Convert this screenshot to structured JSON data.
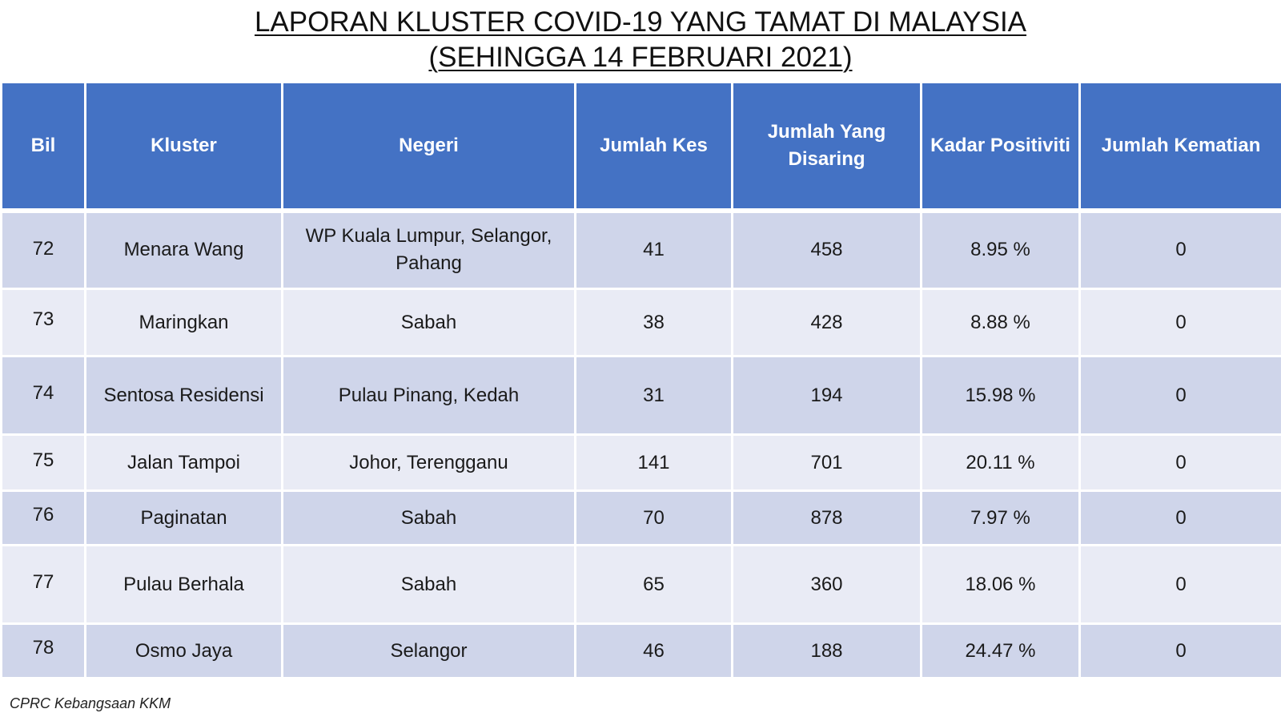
{
  "title": {
    "line1": "LAPORAN KLUSTER COVID-19 YANG TAMAT DI MALAYSIA",
    "line2": "(SEHINGGA  14 FEBRUARI 2021)"
  },
  "table": {
    "headers": [
      "Bil",
      "Kluster",
      "Negeri",
      "Jumlah Kes",
      "Jumlah Yang Disaring",
      "Kadar Positiviti",
      "Jumlah Kematian"
    ],
    "rows": [
      {
        "bil": "72",
        "kluster": "Menara Wang",
        "negeri": "WP Kuala Lumpur, Selangor, Pahang",
        "kes": "41",
        "disaring": "458",
        "positiviti": "8.95 %",
        "kematian": "0"
      },
      {
        "bil": "73",
        "kluster": "Maringkan",
        "negeri": "Sabah",
        "kes": "38",
        "disaring": "428",
        "positiviti": "8.88 %",
        "kematian": "0"
      },
      {
        "bil": "74",
        "kluster": "Sentosa Residensi",
        "negeri": "Pulau Pinang, Kedah",
        "kes": "31",
        "disaring": "194",
        "positiviti": "15.98 %",
        "kematian": "0"
      },
      {
        "bil": "75",
        "kluster": "Jalan Tampoi",
        "negeri": "Johor, Terengganu",
        "kes": "141",
        "disaring": "701",
        "positiviti": "20.11 %",
        "kematian": "0"
      },
      {
        "bil": "76",
        "kluster": "Paginatan",
        "negeri": "Sabah",
        "kes": "70",
        "disaring": "878",
        "positiviti": "7.97 %",
        "kematian": "0"
      },
      {
        "bil": "77",
        "kluster": "Pulau Berhala",
        "negeri": "Sabah",
        "kes": "65",
        "disaring": "360",
        "positiviti": "18.06 %",
        "kematian": "0"
      },
      {
        "bil": "78",
        "kluster": "Osmo Jaya",
        "negeri": "Selangor",
        "kes": "46",
        "disaring": "188",
        "positiviti": "24.47 %",
        "kematian": "0"
      }
    ]
  },
  "footer": "CPRC Kebangsaan KKM",
  "colors": {
    "header_bg": "#4472c4",
    "row_odd": "#cfd5ea",
    "row_even": "#e9ebf5"
  }
}
